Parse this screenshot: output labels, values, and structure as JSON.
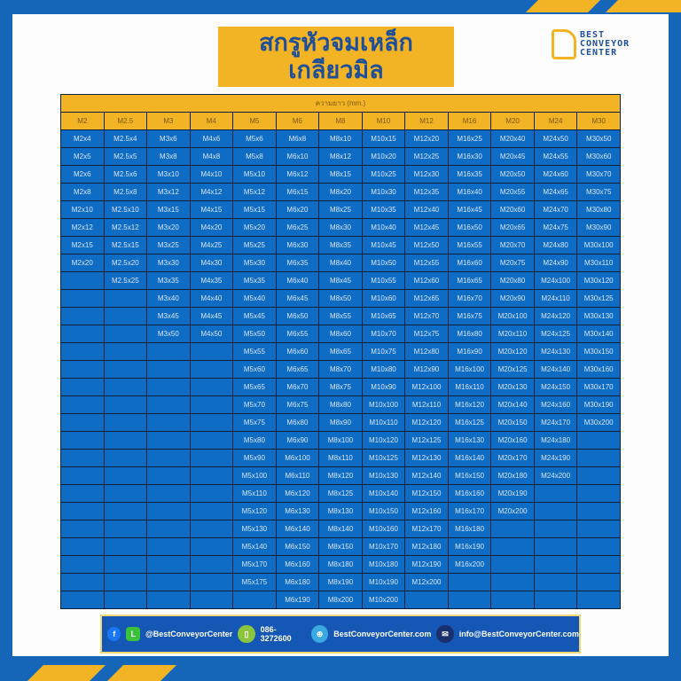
{
  "title_line1": "สกรูหัวจมเหล็ก",
  "title_line2": "เกลียวมิล",
  "logo": {
    "line1": "BEST",
    "line2": "CONVEYOR",
    "line3": "CENTER"
  },
  "table": {
    "caption": "ความยาว (mm.)",
    "columns": [
      {
        "header": "M2",
        "items": [
          "M2x4",
          "M2x5",
          "M2x6",
          "M2x8",
          "M2x10",
          "M2x12",
          "M2x15",
          "M2x20"
        ]
      },
      {
        "header": "M2.5",
        "items": [
          "M2.5x4",
          "M2.5x5",
          "M2.5x6",
          "M2.5x8",
          "M2.5x10",
          "M2.5x12",
          "M2.5x15",
          "M2.5x20",
          "M2.5x25"
        ]
      },
      {
        "header": "M3",
        "items": [
          "M3x6",
          "M3x8",
          "M3x10",
          "M3x12",
          "M3x15",
          "M3x20",
          "M3x25",
          "M3x30",
          "M3x35",
          "M3x40",
          "M3x45",
          "M3x50"
        ]
      },
      {
        "header": "M4",
        "items": [
          "M4x6",
          "M4x8",
          "M4x10",
          "M4x12",
          "M4x15",
          "M4x20",
          "M4x25",
          "M4x30",
          "M4x35",
          "M4x40",
          "M4x45",
          "M4x50"
        ]
      },
      {
        "header": "M5",
        "items": [
          "M5x6",
          "M5x8",
          "M5x10",
          "M5x12",
          "M5x15",
          "M5x20",
          "M5x25",
          "M5x30",
          "M5x35",
          "M5x40",
          "M5x45",
          "M5x50",
          "M5x55",
          "M5x60",
          "M5x65",
          "M5x70",
          "M5x75",
          "M5x80",
          "M5x90",
          "M5x100",
          "M5x110",
          "M5x120",
          "M5x130",
          "M5x140",
          "M5x170",
          "M5x175"
        ]
      },
      {
        "header": "M6",
        "items": [
          "M6x8",
          "M6x10",
          "M6x12",
          "M6x15",
          "M6x20",
          "M6x25",
          "M6x30",
          "M6x35",
          "M6x40",
          "M6x45",
          "M6x50",
          "M6x55",
          "M6x60",
          "M6x65",
          "M6x70",
          "M6x75",
          "M6x80",
          "M6x90",
          "M6x100",
          "M6x110",
          "M6x120",
          "M6x130",
          "M6x140",
          "M6x150",
          "M6x160",
          "M6x180",
          "M6x190"
        ]
      },
      {
        "header": "M8",
        "items": [
          "M8x10",
          "M8x12",
          "M8x15",
          "M8x20",
          "M8x25",
          "M8x30",
          "M8x35",
          "M8x40",
          "M8x45",
          "M8x50",
          "M8x55",
          "M8x60",
          "M8x65",
          "M8x70",
          "M8x75",
          "M8x80",
          "M8x90",
          "M8x100",
          "M8x110",
          "M8x120",
          "M8x125",
          "M8x130",
          "M8x140",
          "M8x150",
          "M8x180",
          "M8x190",
          "M8x200"
        ]
      },
      {
        "header": "M10",
        "items": [
          "M10x15",
          "M10x20",
          "M10x25",
          "M10x30",
          "M10x35",
          "M10x40",
          "M10x45",
          "M10x50",
          "M10x55",
          "M10x60",
          "M10x65",
          "M10x70",
          "M10x75",
          "M10x80",
          "M10x90",
          "M10x100",
          "M10x110",
          "M10x120",
          "M10x125",
          "M10x130",
          "M10x140",
          "M10x150",
          "M10x160",
          "M10x170",
          "M10x180",
          "M10x190",
          "M10x200"
        ]
      },
      {
        "header": "M12",
        "items": [
          "M12x20",
          "M12x25",
          "M12x30",
          "M12x35",
          "M12x40",
          "M12x45",
          "M12x50",
          "M12x55",
          "M12x60",
          "M12x65",
          "M12x70",
          "M12x75",
          "M12x80",
          "M12x90",
          "M12x100",
          "M12x110",
          "M12x120",
          "M12x125",
          "M12x130",
          "M12x140",
          "M12x150",
          "M12x160",
          "M12x170",
          "M12x180",
          "M12x190",
          "M12x200"
        ]
      },
      {
        "header": "M16",
        "items": [
          "M16x25",
          "M16x30",
          "M16x35",
          "M16x40",
          "M16x45",
          "M16x50",
          "M16x55",
          "M16x60",
          "M16x65",
          "M16x70",
          "M16x75",
          "M16x80",
          "M16x90",
          "M16x100",
          "M16x110",
          "M16x120",
          "M16x125",
          "M16x130",
          "M16x140",
          "M16x150",
          "M16x160",
          "M16x170",
          "M16x180",
          "M16x190",
          "M16x200"
        ]
      },
      {
        "header": "M20",
        "items": [
          "M20x40",
          "M20x45",
          "M20x50",
          "M20x55",
          "M20x60",
          "M20x65",
          "M20x70",
          "M20x75",
          "M20x80",
          "M20x90",
          "M20x100",
          "M20x110",
          "M20x120",
          "M20x125",
          "M20x130",
          "M20x140",
          "M20x150",
          "M20x160",
          "M20x170",
          "M20x180",
          "M20x190",
          "M20x200"
        ]
      },
      {
        "header": "M24",
        "items": [
          "M24x50",
          "M24x55",
          "M24x60",
          "M24x65",
          "M24x70",
          "M24x75",
          "M24x80",
          "M24x90",
          "M24x100",
          "M24x110",
          "M24x120",
          "M24x125",
          "M24x130",
          "M24x140",
          "M24x150",
          "M24x160",
          "M24x170",
          "M24x180",
          "M24x190",
          "M24x200"
        ]
      },
      {
        "header": "M30",
        "items": [
          "M30x50",
          "M30x60",
          "M30x70",
          "M30x75",
          "M30x80",
          "M30x90",
          "M30x100",
          "M30x110",
          "M30x120",
          "M30x125",
          "M30x130",
          "M30x140",
          "M30x150",
          "M30x160",
          "M30x170",
          "M30x190",
          "M30x200"
        ]
      }
    ]
  },
  "footer": {
    "social": "@BestConveyorCenter",
    "phone": "086-3272600",
    "website": "BestConveyorCenter.com",
    "email": "info@BestConveyorCenter.com"
  },
  "colors": {
    "brand_blue": "#1565b8",
    "accent_yellow": "#f2b324",
    "cell_blue": "#0f6cc4"
  }
}
